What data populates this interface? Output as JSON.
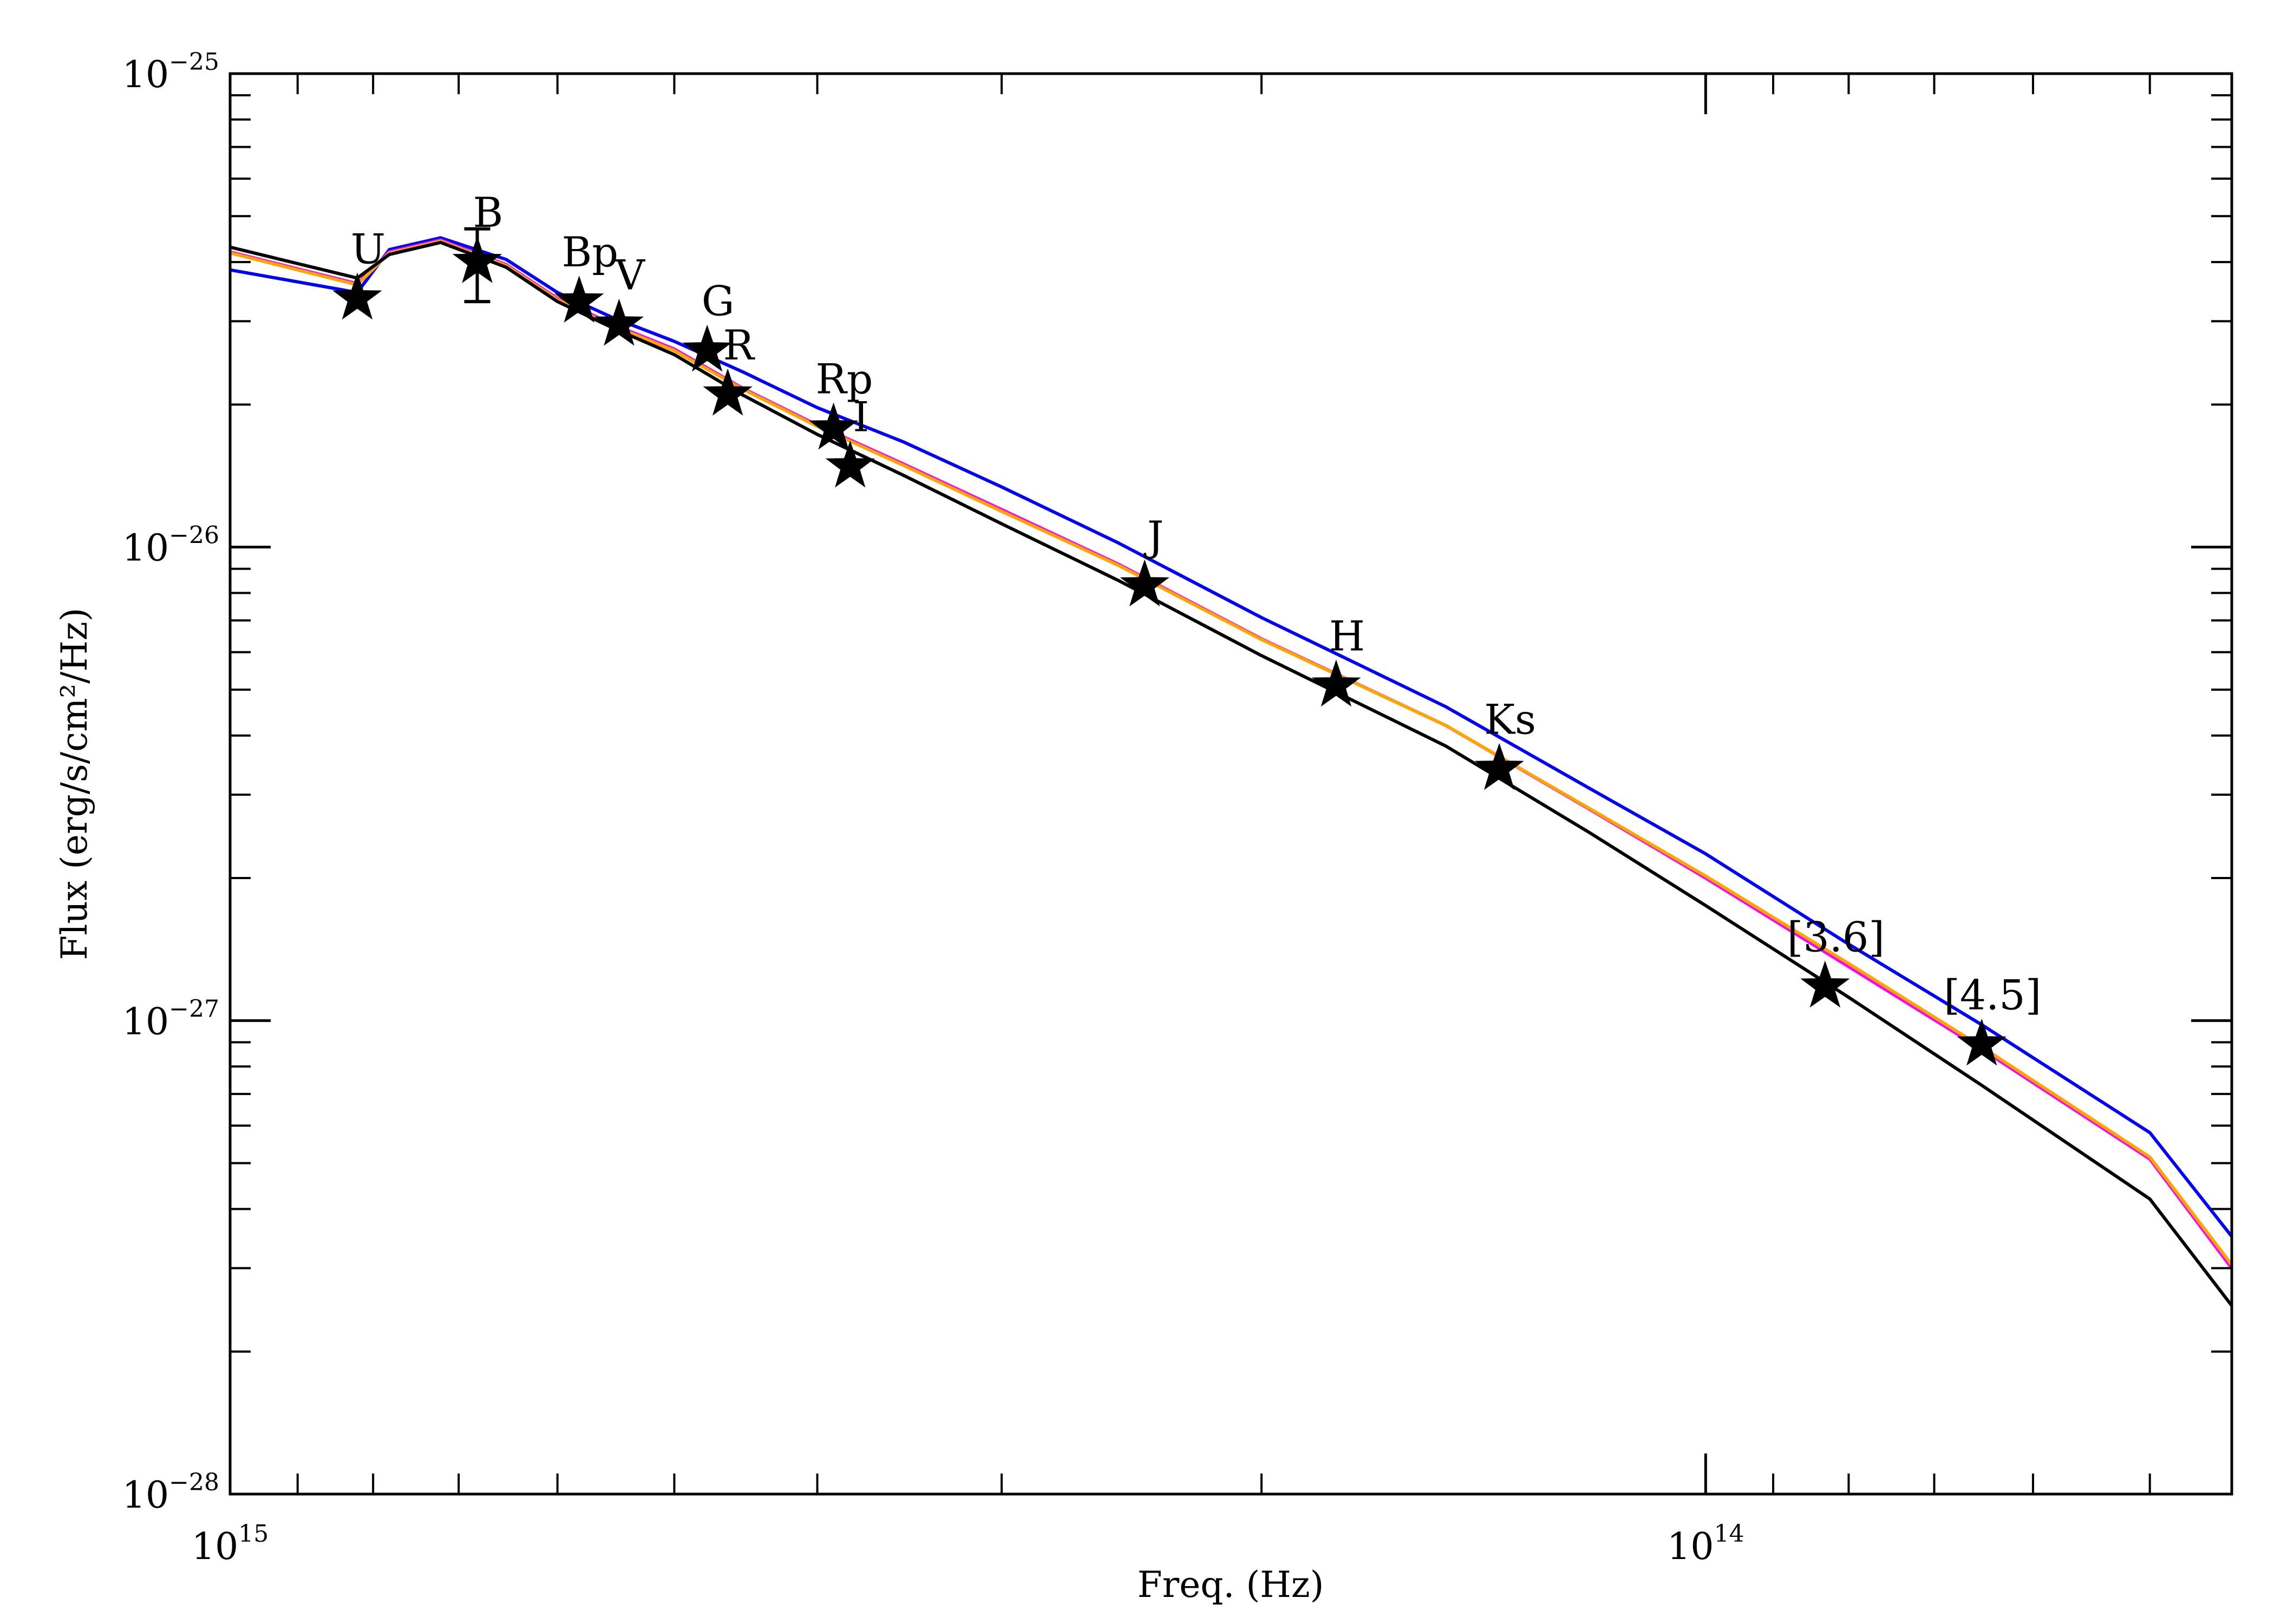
{
  "chart_data": {
    "type": "scatter",
    "title": "",
    "xlabel": "Freq. (Hz)",
    "ylabel": "Flux (erg/s/cm²/Hz)",
    "x_scale": "log",
    "y_scale": "log",
    "x_reversed": true,
    "xlim": [
      1000000000000000.0,
      44000000000000.0
    ],
    "ylim": [
      1e-28,
      1e-25
    ],
    "grid": false,
    "x_ticks": [
      {
        "value": 1000000000000000.0,
        "base": "10",
        "exp": "15"
      },
      {
        "value": 100000000000000.0,
        "base": "10",
        "exp": "14"
      }
    ],
    "y_ticks": [
      {
        "value": 1e-25,
        "base": "10",
        "exp": "−25"
      },
      {
        "value": 1e-26,
        "base": "10",
        "exp": "−26"
      },
      {
        "value": 1e-27,
        "base": "10",
        "exp": "−27"
      },
      {
        "value": 1e-28,
        "base": "10",
        "exp": "−28"
      }
    ],
    "photometry": [
      {
        "band": "U",
        "x": 820000000000000.0,
        "y": 3.35e-26
      },
      {
        "band": "B",
        "x": 680000000000000.0,
        "y": 4e-26,
        "err_low": 3.3e-26,
        "err_high": 4.7e-26
      },
      {
        "band": "Bp",
        "x": 580000000000000.0,
        "y": 3.3e-26
      },
      {
        "band": "V",
        "x": 545000000000000.0,
        "y": 2.95e-26
      },
      {
        "band": "G",
        "x": 475000000000000.0,
        "y": 2.6e-26
      },
      {
        "band": "R",
        "x": 460000000000000.0,
        "y": 2.1e-26
      },
      {
        "band": "Rp",
        "x": 390000000000000.0,
        "y": 1.78e-26
      },
      {
        "band": "I",
        "x": 380000000000000.0,
        "y": 1.48e-26
      },
      {
        "band": "J",
        "x": 240000000000000.0,
        "y": 8.3e-27
      },
      {
        "band": "H",
        "x": 178000000000000.0,
        "y": 5.1e-27
      },
      {
        "band": "Ks",
        "x": 138000000000000.0,
        "y": 3.4e-27
      },
      {
        "band": "[3.6]",
        "x": 83000000000000.0,
        "y": 1.18e-27
      },
      {
        "band": "[4.5]",
        "x": 65000000000000.0,
        "y": 8.9e-28
      }
    ],
    "series": [
      {
        "color": "#0000ff",
        "points": [
          [
            1000000000000000.0,
            3.85e-26
          ],
          [
            820000000000000.0,
            3.45e-26
          ],
          [
            780000000000000.0,
            4.25e-26
          ],
          [
            720000000000000.0,
            4.5e-26
          ],
          [
            650000000000000.0,
            4.05e-26
          ],
          [
            600000000000000.0,
            3.45e-26
          ],
          [
            550000000000000.0,
            3.05e-26
          ],
          [
            500000000000000.0,
            2.72e-26
          ],
          [
            450000000000000.0,
            2.35e-26
          ],
          [
            400000000000000.0,
            1.97e-26
          ],
          [
            350000000000000.0,
            1.67e-26
          ],
          [
            300000000000000.0,
            1.34e-26
          ],
          [
            250000000000000.0,
            1.02e-26
          ],
          [
            200000000000000.0,
            7.1e-27
          ],
          [
            150000000000000.0,
            4.6e-27
          ],
          [
            120000000000000.0,
            3.1e-27
          ],
          [
            100000000000000.0,
            2.25e-27
          ],
          [
            80000000000000.0,
            1.45e-27
          ],
          [
            65000000000000.0,
            9.8e-28
          ],
          [
            50000000000000.0,
            5.8e-28
          ],
          [
            44000000000000.0,
            3.5e-28
          ]
        ]
      },
      {
        "color": "#ff00ff",
        "points": [
          [
            1000000000000000.0,
            4.2e-26
          ],
          [
            820000000000000.0,
            3.6e-26
          ],
          [
            780000000000000.0,
            4.2e-26
          ],
          [
            720000000000000.0,
            4.45e-26
          ],
          [
            650000000000000.0,
            3.95e-26
          ],
          [
            600000000000000.0,
            3.35e-26
          ],
          [
            550000000000000.0,
            2.95e-26
          ],
          [
            500000000000000.0,
            2.62e-26
          ],
          [
            450000000000000.0,
            2.17e-26
          ],
          [
            400000000000000.0,
            1.81e-26
          ],
          [
            350000000000000.0,
            1.5e-26
          ],
          [
            300000000000000.0,
            1.2e-26
          ],
          [
            250000000000000.0,
            9.2e-27
          ],
          [
            200000000000000.0,
            6.4e-27
          ],
          [
            150000000000000.0,
            4.2e-27
          ],
          [
            120000000000000.0,
            2.8e-27
          ],
          [
            100000000000000.0,
            2e-27
          ],
          [
            80000000000000.0,
            1.3e-27
          ],
          [
            65000000000000.0,
            8.7e-28
          ],
          [
            50000000000000.0,
            5.1e-28
          ],
          [
            44000000000000.0,
            3e-28
          ]
        ]
      },
      {
        "color": "#ffa500",
        "points": [
          [
            1000000000000000.0,
            4.18e-26
          ],
          [
            820000000000000.0,
            3.58e-26
          ],
          [
            780000000000000.0,
            4.18e-26
          ],
          [
            720000000000000.0,
            4.43e-26
          ],
          [
            650000000000000.0,
            3.93e-26
          ],
          [
            600000000000000.0,
            3.33e-26
          ],
          [
            550000000000000.0,
            2.93e-26
          ],
          [
            500000000000000.0,
            2.6e-26
          ],
          [
            450000000000000.0,
            2.16e-26
          ],
          [
            400000000000000.0,
            1.8e-26
          ],
          [
            350000000000000.0,
            1.49e-26
          ],
          [
            300000000000000.0,
            1.19e-26
          ],
          [
            250000000000000.0,
            9.15e-27
          ],
          [
            200000000000000.0,
            6.38e-27
          ],
          [
            150000000000000.0,
            4.2e-27
          ],
          [
            120000000000000.0,
            2.81e-27
          ],
          [
            100000000000000.0,
            2.02e-27
          ],
          [
            80000000000000.0,
            1.32e-27
          ],
          [
            65000000000000.0,
            8.8e-28
          ],
          [
            50000000000000.0,
            5.15e-28
          ],
          [
            44000000000000.0,
            3.05e-28
          ]
        ]
      },
      {
        "color": "#000000",
        "points": [
          [
            1000000000000000.0,
            4.3e-26
          ],
          [
            820000000000000.0,
            3.7e-26
          ],
          [
            780000000000000.0,
            4.15e-26
          ],
          [
            720000000000000.0,
            4.4e-26
          ],
          [
            650000000000000.0,
            3.9e-26
          ],
          [
            600000000000000.0,
            3.3e-26
          ],
          [
            550000000000000.0,
            2.9e-26
          ],
          [
            500000000000000.0,
            2.55e-26
          ],
          [
            450000000000000.0,
            2.1e-26
          ],
          [
            400000000000000.0,
            1.73e-26
          ],
          [
            350000000000000.0,
            1.42e-26
          ],
          [
            300000000000000.0,
            1.12e-26
          ],
          [
            250000000000000.0,
            8.5e-27
          ],
          [
            200000000000000.0,
            5.9e-27
          ],
          [
            150000000000000.0,
            3.8e-27
          ],
          [
            120000000000000.0,
            2.5e-27
          ],
          [
            100000000000000.0,
            1.75e-27
          ],
          [
            80000000000000.0,
            1.12e-27
          ],
          [
            65000000000000.0,
            7.3e-28
          ],
          [
            50000000000000.0,
            4.2e-28
          ],
          [
            44000000000000.0,
            2.5e-28
          ]
        ]
      }
    ]
  }
}
